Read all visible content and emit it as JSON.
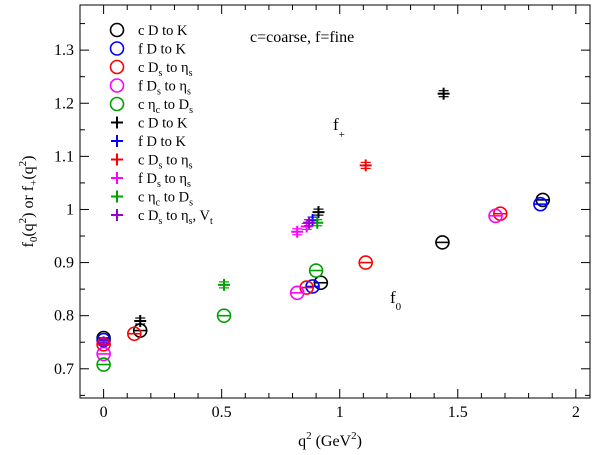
{
  "chart_data": {
    "type": "scatter",
    "xlabel": {
      "base": "q",
      "sup": "2",
      "rest": " (GeV",
      "sup2": "2",
      "end": ")"
    },
    "ylabel": {
      "p1": "f",
      "sub1": "0",
      "p2": "(q",
      "sup1": "2",
      "p3": ") or f",
      "sub2": "+",
      "p4": "(q",
      "sup2": "2",
      "p5": ")"
    },
    "xlim": [
      -0.1,
      2.06
    ],
    "ylim": [
      0.645,
      1.385
    ],
    "xticks": [
      0,
      0.5,
      1,
      1.5,
      2
    ],
    "xtick_labels": [
      "0",
      "0.5",
      "1",
      "1.5",
      "2"
    ],
    "yticks": [
      0.7,
      0.8,
      0.9,
      1.0,
      1.1,
      1.2,
      1.3
    ],
    "ytick_labels": [
      "0.7",
      "0.8",
      "0.9",
      "1",
      "1.1",
      "1.2",
      "1.3"
    ],
    "grid": false,
    "legend_position": "top-left",
    "annotations": [
      {
        "key": "note",
        "text": "c=coarse, f=fine"
      },
      {
        "key": "fplus",
        "base": "f",
        "sub": "+"
      },
      {
        "key": "fzero",
        "base": "f",
        "sub": "0"
      }
    ],
    "series": [
      {
        "name": "c D to K",
        "legend": {
          "base": "c D to K"
        },
        "marker": "circle",
        "color": "#000000",
        "points": [
          [
            0,
            0.758
          ],
          [
            0.155,
            0.772
          ],
          [
            0.92,
            0.862
          ],
          [
            1.435,
            0.938
          ],
          [
            1.86,
            1.018
          ]
        ]
      },
      {
        "name": "f D to K",
        "legend": {
          "base": "f D to K"
        },
        "marker": "circle",
        "color": "#0000ff",
        "points": [
          [
            0,
            0.754
          ],
          [
            0.885,
            0.855
          ],
          [
            1.85,
            1.01
          ]
        ]
      },
      {
        "name": "c Ds to ηs",
        "legend": {
          "p1": "c D",
          "s1": "s",
          "p2": " to η",
          "s2": "s"
        },
        "marker": "circle",
        "color": "#ff0000",
        "points": [
          [
            0,
            0.746
          ],
          [
            0.13,
            0.766
          ],
          [
            0.86,
            0.853
          ],
          [
            1.11,
            0.9
          ],
          [
            1.68,
            0.992
          ]
        ]
      },
      {
        "name": "f Ds to ηs",
        "legend": {
          "p1": "f D",
          "s1": "s",
          "p2": " to η",
          "s2": "s"
        },
        "marker": "circle",
        "color": "#ff00ff",
        "points": [
          [
            0,
            0.728
          ],
          [
            0.82,
            0.843
          ],
          [
            1.66,
            0.988
          ]
        ]
      },
      {
        "name": "c ηc to Ds",
        "legend": {
          "p1": "c η",
          "s1": "c",
          "p2": " to D",
          "s2": "s"
        },
        "marker": "circle",
        "color": "#00a000",
        "points": [
          [
            0,
            0.708
          ],
          [
            0.51,
            0.8
          ],
          [
            0.9,
            0.885
          ]
        ]
      },
      {
        "name": "c D to K (f+)",
        "legend": {
          "base": "c D to K"
        },
        "marker": "plus",
        "color": "#000000",
        "points": [
          [
            0.155,
            0.79
          ],
          [
            0.91,
            0.995
          ],
          [
            1.44,
            1.218
          ]
        ]
      },
      {
        "name": "f D to K (f+)",
        "legend": {
          "base": "f D to K"
        },
        "marker": "plus",
        "color": "#0000ff",
        "points": [
          [
            0.885,
            0.98
          ]
        ]
      },
      {
        "name": "c Ds to ηs (f+)",
        "legend": {
          "p1": "c D",
          "s1": "s",
          "p2": " to η",
          "s2": "s"
        },
        "marker": "plus",
        "color": "#ff0000",
        "points": [
          [
            1.11,
            1.083
          ]
        ]
      },
      {
        "name": "f Ds to ηs (f+)",
        "legend": {
          "p1": "f D",
          "s1": "s",
          "p2": " to η",
          "s2": "s"
        },
        "marker": "plus",
        "color": "#ff00ff",
        "points": [
          [
            0.82,
            0.958
          ],
          [
            0.86,
            0.968
          ]
        ]
      },
      {
        "name": "c ηc to Ds (f+)",
        "legend": {
          "p1": "c η",
          "s1": "c",
          "p2": " to D",
          "s2": "s"
        },
        "marker": "plus",
        "color": "#00a000",
        "points": [
          [
            0.51,
            0.858
          ],
          [
            0.905,
            0.975
          ]
        ]
      },
      {
        "name": "c Ds to ηs, Vt",
        "legend": {
          "p1": "c D",
          "s1": "s",
          "p2": " to η",
          "s2": "s",
          "p3": ", V",
          "s3": "t"
        },
        "marker": "plus",
        "color": "#9900cc",
        "points": [
          [
            0,
            0.75
          ],
          [
            0.87,
            0.975
          ]
        ]
      }
    ]
  }
}
